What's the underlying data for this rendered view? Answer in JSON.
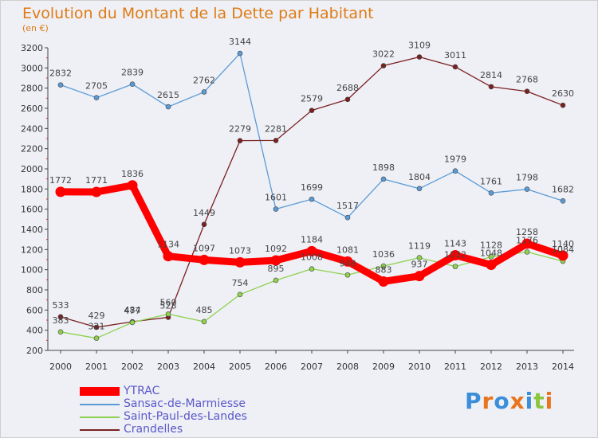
{
  "chart_data": {
    "type": "line",
    "title": "Evolution du Montant de la Dette par Habitant",
    "subtitle": "(en €)",
    "x": [
      "2000",
      "2001",
      "2002",
      "2003",
      "2004",
      "2005",
      "2006",
      "2007",
      "2008",
      "2009",
      "2010",
      "2011",
      "2012",
      "2013",
      "2014"
    ],
    "ylim": [
      200,
      3200
    ],
    "yticks": [
      200,
      400,
      600,
      800,
      1000,
      1200,
      1400,
      1600,
      1800,
      2000,
      2200,
      2400,
      2600,
      2800,
      3000,
      3200
    ],
    "grid": false,
    "legend_position": "bottom-left",
    "series": [
      {
        "name": "YTRAC",
        "color": "#ff0000",
        "values": [
          1772,
          1771,
          1836,
          1134,
          1097,
          1073,
          1092,
          1184,
          1081,
          883,
          937,
          1143,
          1048,
          1258,
          1140
        ]
      },
      {
        "name": "Sansac-de-Marmiesse",
        "color": "#5b9bd5",
        "values": [
          2832,
          2705,
          2839,
          2615,
          2762,
          3144,
          1601,
          1699,
          1517,
          1898,
          1804,
          1979,
          1761,
          1798,
          1682
        ]
      },
      {
        "name": "Saint-Paul-des-Landes",
        "color": "#8fd14f",
        "values": [
          383,
          321,
          477,
          560,
          485,
          754,
          895,
          1008,
          948,
          1036,
          1119,
          1032,
          1128,
          1176,
          1084
        ]
      },
      {
        "name": "Crandelles",
        "color": "#7b2020",
        "values": [
          533,
          429,
          484,
          528,
          1449,
          2279,
          2281,
          2579,
          2688,
          3022,
          3109,
          3011,
          2814,
          2768,
          2630
        ]
      }
    ]
  },
  "logo": {
    "text": "Proxiti",
    "colors": [
      "#3b8ed8",
      "#e8741e",
      "#3b8ed8",
      "#e8741e",
      "#3b8ed8",
      "#8cc63f",
      "#e8741e"
    ]
  }
}
